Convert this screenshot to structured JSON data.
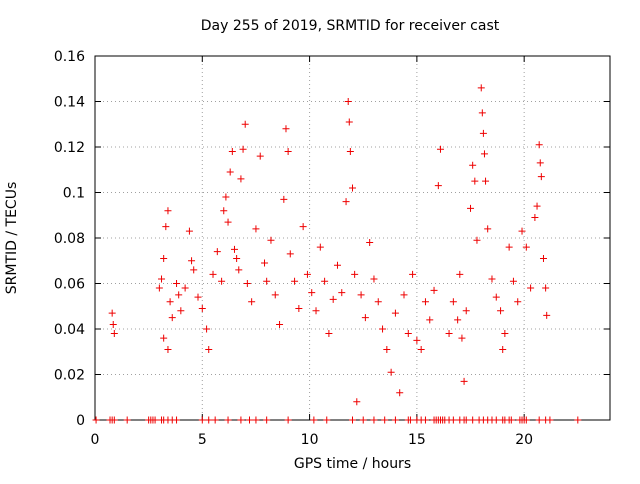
{
  "chart_data": {
    "type": "scatter",
    "title": "Day 255 of 2019, SRMTID for receiver cast",
    "xlabel": "GPS time / hours",
    "ylabel": "SRMTID / TECUs",
    "xlim": [
      0,
      24
    ],
    "ylim": [
      0,
      0.16
    ],
    "xticks": [
      0,
      5,
      10,
      15,
      20
    ],
    "yticks": [
      0,
      0.02,
      0.04,
      0.06,
      0.08,
      0.1,
      0.12,
      0.14,
      0.16
    ],
    "xtick_labels": [
      "0",
      "5",
      "10",
      "15",
      "20"
    ],
    "ytick_labels": [
      "0",
      "0.02",
      "0.04",
      "0.06",
      "0.08",
      "0.1",
      "0.12",
      "0.14",
      "0.16"
    ],
    "grid": true,
    "marker": "+",
    "colors": {
      "series": "#ee0000",
      "grid": "#a0a0a0",
      "axes": "#000000"
    },
    "series": [
      {
        "points": [
          [
            0.8,
            0.047
          ],
          [
            0.85,
            0.042
          ],
          [
            0.9,
            0.038
          ],
          [
            3.0,
            0.058
          ],
          [
            3.1,
            0.062
          ],
          [
            3.2,
            0.071
          ],
          [
            3.3,
            0.085
          ],
          [
            3.4,
            0.092
          ],
          [
            3.5,
            0.052
          ],
          [
            3.6,
            0.045
          ],
          [
            3.2,
            0.036
          ],
          [
            3.4,
            0.031
          ],
          [
            3.8,
            0.06
          ],
          [
            3.9,
            0.055
          ],
          [
            4.0,
            0.048
          ],
          [
            4.2,
            0.058
          ],
          [
            4.4,
            0.083
          ],
          [
            4.5,
            0.07
          ],
          [
            4.6,
            0.066
          ],
          [
            4.8,
            0.054
          ],
          [
            5.0,
            0.049
          ],
          [
            5.2,
            0.04
          ],
          [
            5.3,
            0.031
          ],
          [
            5.5,
            0.064
          ],
          [
            5.7,
            0.074
          ],
          [
            5.9,
            0.061
          ],
          [
            6.0,
            0.092
          ],
          [
            6.1,
            0.098
          ],
          [
            6.2,
            0.087
          ],
          [
            6.3,
            0.109
          ],
          [
            6.4,
            0.118
          ],
          [
            6.5,
            0.075
          ],
          [
            6.6,
            0.071
          ],
          [
            6.7,
            0.066
          ],
          [
            6.8,
            0.106
          ],
          [
            6.9,
            0.119
          ],
          [
            7.0,
            0.13
          ],
          [
            7.1,
            0.06
          ],
          [
            7.3,
            0.052
          ],
          [
            7.5,
            0.084
          ],
          [
            7.7,
            0.116
          ],
          [
            7.9,
            0.069
          ],
          [
            8.0,
            0.061
          ],
          [
            8.2,
            0.079
          ],
          [
            8.4,
            0.055
          ],
          [
            8.6,
            0.042
          ],
          [
            8.8,
            0.097
          ],
          [
            8.9,
            0.128
          ],
          [
            9.0,
            0.118
          ],
          [
            9.1,
            0.073
          ],
          [
            9.3,
            0.061
          ],
          [
            9.5,
            0.049
          ],
          [
            9.7,
            0.085
          ],
          [
            9.9,
            0.064
          ],
          [
            10.1,
            0.056
          ],
          [
            10.3,
            0.048
          ],
          [
            10.5,
            0.076
          ],
          [
            10.7,
            0.061
          ],
          [
            10.9,
            0.038
          ],
          [
            11.1,
            0.053
          ],
          [
            11.3,
            0.068
          ],
          [
            11.5,
            0.056
          ],
          [
            11.7,
            0.096
          ],
          [
            11.8,
            0.14
          ],
          [
            11.85,
            0.131
          ],
          [
            11.9,
            0.118
          ],
          [
            12.0,
            0.102
          ],
          [
            12.1,
            0.064
          ],
          [
            12.2,
            0.008
          ],
          [
            12.4,
            0.055
          ],
          [
            12.6,
            0.045
          ],
          [
            12.8,
            0.078
          ],
          [
            13.0,
            0.062
          ],
          [
            13.2,
            0.052
          ],
          [
            13.4,
            0.04
          ],
          [
            13.6,
            0.031
          ],
          [
            13.8,
            0.021
          ],
          [
            14.0,
            0.047
          ],
          [
            14.2,
            0.012
          ],
          [
            14.4,
            0.055
          ],
          [
            14.6,
            0.038
          ],
          [
            14.8,
            0.064
          ],
          [
            15.0,
            0.035
          ],
          [
            15.2,
            0.031
          ],
          [
            15.4,
            0.052
          ],
          [
            15.6,
            0.044
          ],
          [
            15.8,
            0.057
          ],
          [
            16.0,
            0.103
          ],
          [
            16.1,
            0.119
          ],
          [
            16.5,
            0.038
          ],
          [
            16.7,
            0.052
          ],
          [
            16.9,
            0.044
          ],
          [
            17.0,
            0.064
          ],
          [
            17.1,
            0.036
          ],
          [
            17.2,
            0.017
          ],
          [
            17.3,
            0.048
          ],
          [
            17.5,
            0.093
          ],
          [
            17.6,
            0.112
          ],
          [
            17.7,
            0.105
          ],
          [
            17.8,
            0.079
          ],
          [
            18.0,
            0.146
          ],
          [
            18.05,
            0.135
          ],
          [
            18.1,
            0.126
          ],
          [
            18.15,
            0.117
          ],
          [
            18.2,
            0.105
          ],
          [
            18.3,
            0.084
          ],
          [
            18.5,
            0.062
          ],
          [
            18.7,
            0.054
          ],
          [
            18.9,
            0.048
          ],
          [
            19.0,
            0.031
          ],
          [
            19.1,
            0.038
          ],
          [
            19.3,
            0.076
          ],
          [
            19.5,
            0.061
          ],
          [
            19.7,
            0.052
          ],
          [
            19.9,
            0.083
          ],
          [
            20.1,
            0.076
          ],
          [
            20.3,
            0.058
          ],
          [
            20.5,
            0.089
          ],
          [
            20.6,
            0.094
          ],
          [
            20.7,
            0.121
          ],
          [
            20.75,
            0.113
          ],
          [
            20.8,
            0.107
          ],
          [
            20.9,
            0.071
          ],
          [
            21.0,
            0.058
          ],
          [
            21.05,
            0.046
          ]
        ]
      }
    ],
    "zero_points_x": [
      0.05,
      0.7,
      0.8,
      0.9,
      1.5,
      2.5,
      2.6,
      2.7,
      2.8,
      3.1,
      3.2,
      3.4,
      3.6,
      3.8,
      5.0,
      5.3,
      5.6,
      6.2,
      6.8,
      7.2,
      7.5,
      8.0,
      9.0,
      10.2,
      10.8,
      12.0,
      12.5,
      13.0,
      13.5,
      14.0,
      14.6,
      14.7,
      15.0,
      15.2,
      15.4,
      15.8,
      15.9,
      16.0,
      16.1,
      16.2,
      16.3,
      16.5,
      16.7,
      17.0,
      17.2,
      17.3,
      17.6,
      17.9,
      18.1,
      18.3,
      18.5,
      18.7,
      19.0,
      19.1,
      19.3,
      19.4,
      19.8,
      19.9,
      20.0,
      20.1,
      20.7,
      21.0,
      21.2,
      22.5
    ]
  }
}
